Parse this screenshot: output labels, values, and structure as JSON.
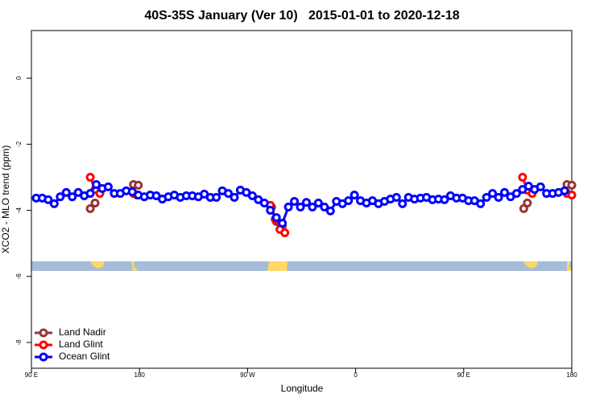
{
  "chart_data": {
    "type": "line",
    "title": "40S-35S January (Ver 10)   2015-01-01 to 2020-12-18",
    "x_label": "Longitude",
    "y_label": "XCO2 - MLO trend (ppm)",
    "xlim": [
      90,
      540
    ],
    "xticks": [
      {
        "value": 90,
        "label": "90 E"
      },
      180,
      {
        "value": 270,
        "label": "90 W"
      },
      {
        "value": 360,
        "label": "0"
      },
      {
        "value": 450,
        "label": "90 E"
      },
      {
        "value": 540,
        "label": "180"
      }
    ],
    "ylim": [
      -8.78,
      1.44
    ],
    "yticks": [
      0,
      -2,
      -4,
      -6,
      -8
    ],
    "grid": false,
    "legend": "bottomleft",
    "series": [
      {
        "name": "Land Nadir",
        "color": "#993333",
        "x": [
          139,
          143,
          null,
          175,
          179,
          null,
          290,
          294,
          299,
          null,
          500,
          503,
          null,
          536,
          540
        ],
        "values": [
          -3.95,
          -3.78,
          null,
          -3.22,
          -3.24,
          null,
          -3.9,
          -4.34,
          -4.46,
          null,
          -3.95,
          -3.78,
          null,
          -3.22,
          -3.24
        ]
      },
      {
        "name": "Land Glint",
        "color": "#ff0000",
        "x": [
          139,
          143,
          147,
          null,
          175,
          178,
          null,
          289,
          293,
          297,
          301,
          null,
          499,
          503,
          507,
          null,
          536,
          540
        ],
        "values": [
          -3.0,
          -3.37,
          -3.49,
          null,
          -3.49,
          -3.54,
          null,
          -3.85,
          -4.27,
          -4.58,
          -4.68,
          null,
          -3.0,
          -3.39,
          -3.49,
          null,
          -3.49,
          -3.54
        ]
      },
      {
        "name": "Ocean Glint",
        "color": "#0000ff",
        "x": [
          94,
          99,
          104,
          109,
          114,
          119,
          124,
          129,
          134,
          139,
          144,
          149,
          154,
          159,
          164,
          169,
          174,
          179,
          184,
          189,
          194,
          199,
          204,
          209,
          214,
          219,
          224,
          229,
          234,
          239,
          244,
          249,
          254,
          259,
          264,
          269,
          274,
          279,
          284,
          289,
          294,
          299,
          304,
          309,
          314,
          319,
          324,
          329,
          334,
          339,
          344,
          349,
          354,
          359,
          364,
          369,
          374,
          379,
          384,
          389,
          394,
          399,
          404,
          409,
          414,
          419,
          424,
          429,
          434,
          439,
          444,
          449,
          454,
          459,
          464,
          469,
          474,
          479,
          484,
          489,
          494,
          499,
          504,
          509,
          514,
          519,
          524,
          529,
          534
        ],
        "values": [
          -3.63,
          -3.63,
          -3.68,
          -3.8,
          -3.59,
          -3.46,
          -3.59,
          -3.46,
          -3.56,
          -3.49,
          -3.22,
          -3.34,
          -3.29,
          -3.49,
          -3.49,
          -3.41,
          -3.44,
          -3.54,
          -3.59,
          -3.54,
          -3.56,
          -3.66,
          -3.59,
          -3.54,
          -3.61,
          -3.56,
          -3.56,
          -3.59,
          -3.51,
          -3.61,
          -3.61,
          -3.41,
          -3.49,
          -3.61,
          -3.39,
          -3.46,
          -3.56,
          -3.68,
          -3.78,
          -4.0,
          -4.22,
          -4.39,
          -3.9,
          -3.73,
          -3.9,
          -3.76,
          -3.9,
          -3.78,
          -3.9,
          -4.02,
          -3.73,
          -3.8,
          -3.71,
          -3.54,
          -3.71,
          -3.78,
          -3.71,
          -3.8,
          -3.73,
          -3.66,
          -3.61,
          -3.8,
          -3.61,
          -3.66,
          -3.63,
          -3.61,
          -3.68,
          -3.66,
          -3.68,
          -3.56,
          -3.63,
          -3.63,
          -3.71,
          -3.71,
          -3.8,
          -3.61,
          -3.49,
          -3.61,
          -3.46,
          -3.59,
          -3.49,
          -3.37,
          -3.27,
          -3.37,
          -3.29,
          -3.49,
          -3.49,
          -3.46,
          -3.41
        ]
      }
    ]
  }
}
